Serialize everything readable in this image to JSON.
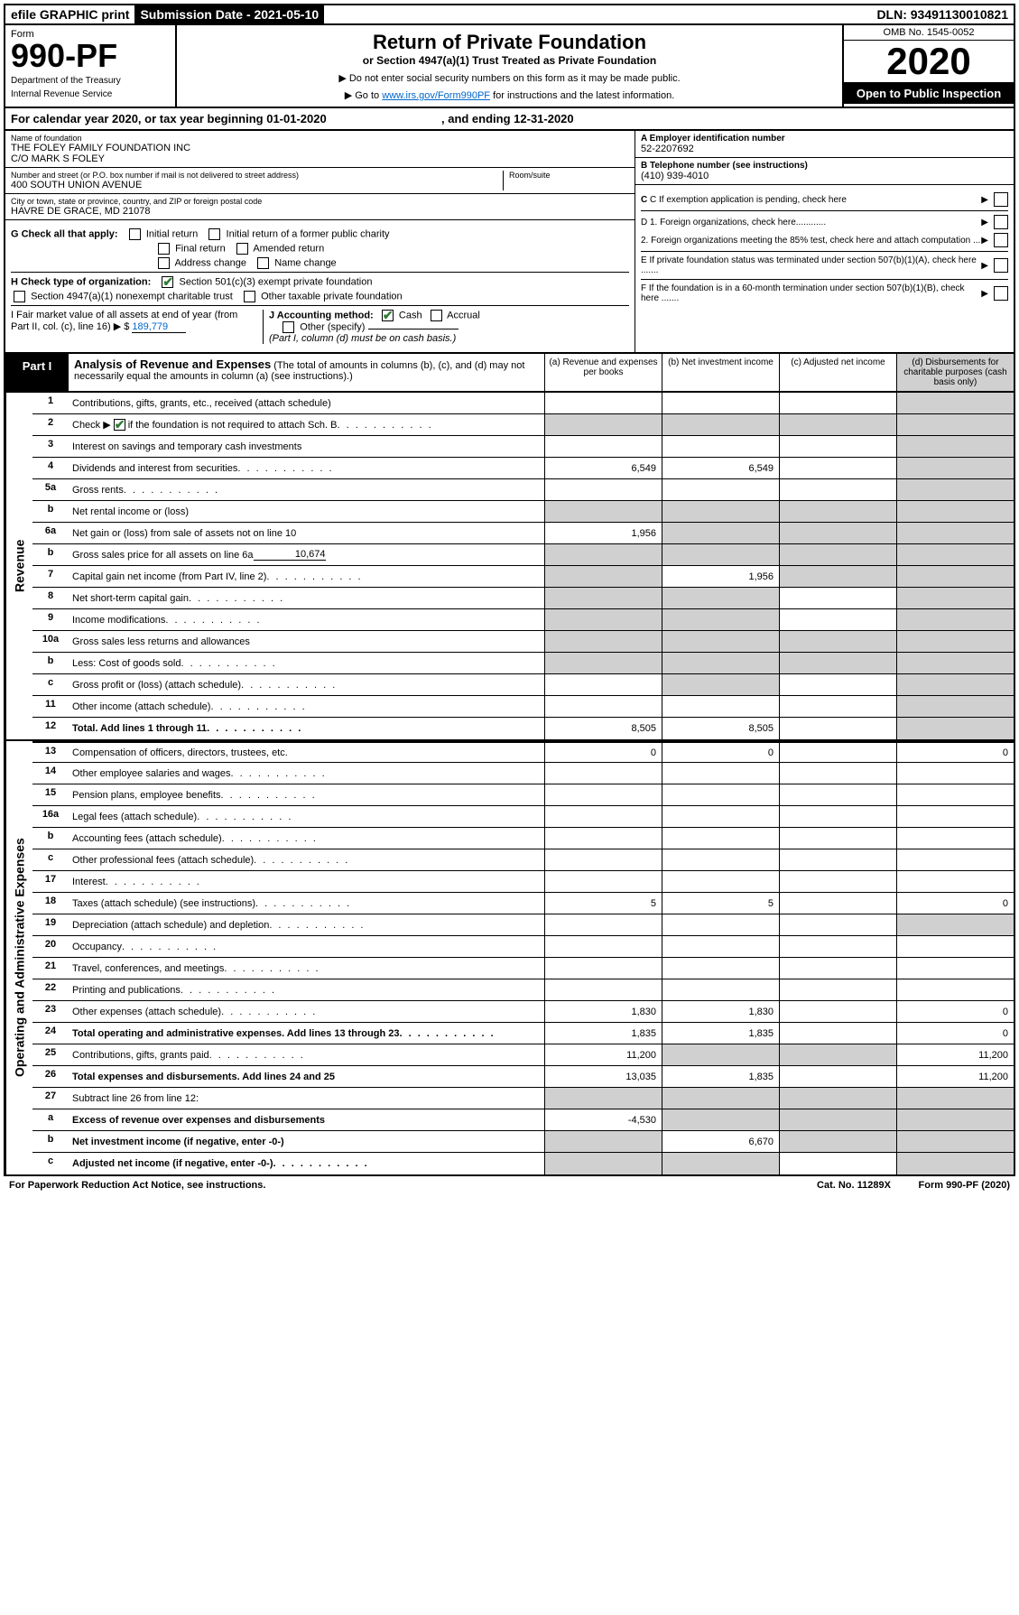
{
  "topbar": {
    "efile": "efile GRAPHIC print",
    "submission_label": "Submission Date - 2021-05-10",
    "dln": "DLN: 93491130010821"
  },
  "header": {
    "form_label": "Form",
    "form_number": "990-PF",
    "dept": "Department of the Treasury",
    "irs": "Internal Revenue Service",
    "title": "Return of Private Foundation",
    "subtitle": "or Section 4947(a)(1) Trust Treated as Private Foundation",
    "note1": "▶ Do not enter social security numbers on this form as it may be made public.",
    "note2_prefix": "▶ Go to ",
    "note2_link": "www.irs.gov/Form990PF",
    "note2_suffix": " for instructions and the latest information.",
    "omb": "OMB No. 1545-0052",
    "year": "2020",
    "open": "Open to Public Inspection"
  },
  "calyear": {
    "text_a": "For calendar year 2020, or tax year beginning 01-01-2020",
    "text_b": ", and ending 12-31-2020"
  },
  "identity": {
    "name_label": "Name of foundation",
    "name": "THE FOLEY FAMILY FOUNDATION INC",
    "care_of": "C/O MARK S FOLEY",
    "addr_label": "Number and street (or P.O. box number if mail is not delivered to street address)",
    "addr": "400 SOUTH UNION AVENUE",
    "room_label": "Room/suite",
    "city_label": "City or town, state or province, country, and ZIP or foreign postal code",
    "city": "HAVRE DE GRACE, MD  21078",
    "ein_label": "A Employer identification number",
    "ein": "52-2207692",
    "phone_label": "B Telephone number (see instructions)",
    "phone": "(410) 939-4010",
    "c_label": "C If exemption application is pending, check here",
    "d1": "D 1. Foreign organizations, check here............",
    "d2": "2. Foreign organizations meeting the 85% test, check here and attach computation ...",
    "e_label": "E  If private foundation status was terminated under section 507(b)(1)(A), check here .......",
    "f_label": "F  If the foundation is in a 60-month termination under section 507(b)(1)(B), check here ......."
  },
  "g": {
    "label": "G Check all that apply:",
    "initial": "Initial return",
    "initial_former": "Initial return of a former public charity",
    "final": "Final return",
    "amended": "Amended return",
    "addr_change": "Address change",
    "name_change": "Name change"
  },
  "h": {
    "label": "H Check type of organization:",
    "s501": "Section 501(c)(3) exempt private foundation",
    "s4947": "Section 4947(a)(1) nonexempt charitable trust",
    "other": "Other taxable private foundation"
  },
  "i": {
    "label": "I Fair market value of all assets at end of year (from Part II, col. (c), line 16) ▶ $",
    "value": "189,779"
  },
  "j": {
    "label": "J Accounting method:",
    "cash": "Cash",
    "accrual": "Accrual",
    "other": "Other (specify)",
    "note": "(Part I, column (d) must be on cash basis.)"
  },
  "part1": {
    "label": "Part I",
    "title": "Analysis of Revenue and Expenses",
    "subtitle": "(The total of amounts in columns (b), (c), and (d) may not necessarily equal the amounts in column (a) (see instructions).)",
    "col_a": "(a)   Revenue and expenses per books",
    "col_b": "(b)  Net investment income",
    "col_c": "(c)  Adjusted net income",
    "col_d": "(d)  Disbursements for charitable purposes (cash basis only)"
  },
  "sections": {
    "revenue": "Revenue",
    "expenses": "Operating and Administrative Expenses"
  },
  "rows": {
    "r1": {
      "num": "1",
      "desc": "Contributions, gifts, grants, etc., received (attach schedule)"
    },
    "r2": {
      "num": "2",
      "desc": "Check ▶",
      "desc2": " if the foundation is not required to attach Sch. B"
    },
    "r3": {
      "num": "3",
      "desc": "Interest on savings and temporary cash investments"
    },
    "r4": {
      "num": "4",
      "desc": "Dividends and interest from securities",
      "a": "6,549",
      "b": "6,549"
    },
    "r5a": {
      "num": "5a",
      "desc": "Gross rents"
    },
    "r5b": {
      "num": "b",
      "desc": "Net rental income or (loss)"
    },
    "r6a": {
      "num": "6a",
      "desc": "Net gain or (loss) from sale of assets not on line 10",
      "a": "1,956"
    },
    "r6b": {
      "num": "b",
      "desc": "Gross sales price for all assets on line 6a",
      "val": "10,674"
    },
    "r7": {
      "num": "7",
      "desc": "Capital gain net income (from Part IV, line 2)",
      "b": "1,956"
    },
    "r8": {
      "num": "8",
      "desc": "Net short-term capital gain"
    },
    "r9": {
      "num": "9",
      "desc": "Income modifications"
    },
    "r10a": {
      "num": "10a",
      "desc": "Gross sales less returns and allowances"
    },
    "r10b": {
      "num": "b",
      "desc": "Less: Cost of goods sold"
    },
    "r10c": {
      "num": "c",
      "desc": "Gross profit or (loss) (attach schedule)"
    },
    "r11": {
      "num": "11",
      "desc": "Other income (attach schedule)"
    },
    "r12": {
      "num": "12",
      "desc": "Total. Add lines 1 through 11",
      "a": "8,505",
      "b": "8,505"
    },
    "r13": {
      "num": "13",
      "desc": "Compensation of officers, directors, trustees, etc.",
      "a": "0",
      "b": "0",
      "d": "0"
    },
    "r14": {
      "num": "14",
      "desc": "Other employee salaries and wages"
    },
    "r15": {
      "num": "15",
      "desc": "Pension plans, employee benefits"
    },
    "r16a": {
      "num": "16a",
      "desc": "Legal fees (attach schedule)"
    },
    "r16b": {
      "num": "b",
      "desc": "Accounting fees (attach schedule)"
    },
    "r16c": {
      "num": "c",
      "desc": "Other professional fees (attach schedule)"
    },
    "r17": {
      "num": "17",
      "desc": "Interest"
    },
    "r18": {
      "num": "18",
      "desc": "Taxes (attach schedule) (see instructions)",
      "a": "5",
      "b": "5",
      "d": "0"
    },
    "r19": {
      "num": "19",
      "desc": "Depreciation (attach schedule) and depletion"
    },
    "r20": {
      "num": "20",
      "desc": "Occupancy"
    },
    "r21": {
      "num": "21",
      "desc": "Travel, conferences, and meetings"
    },
    "r22": {
      "num": "22",
      "desc": "Printing and publications"
    },
    "r23": {
      "num": "23",
      "desc": "Other expenses (attach schedule)",
      "a": "1,830",
      "b": "1,830",
      "d": "0"
    },
    "r24": {
      "num": "24",
      "desc": "Total operating and administrative expenses. Add lines 13 through 23",
      "a": "1,835",
      "b": "1,835",
      "d": "0"
    },
    "r25": {
      "num": "25",
      "desc": "Contributions, gifts, grants paid",
      "a": "11,200",
      "d": "11,200"
    },
    "r26": {
      "num": "26",
      "desc": "Total expenses and disbursements. Add lines 24 and 25",
      "a": "13,035",
      "b": "1,835",
      "d": "11,200"
    },
    "r27": {
      "num": "27",
      "desc": "Subtract line 26 from line 12:"
    },
    "r27a": {
      "num": "a",
      "desc": "Excess of revenue over expenses and disbursements",
      "a": "-4,530"
    },
    "r27b": {
      "num": "b",
      "desc": "Net investment income (if negative, enter -0-)",
      "b": "6,670"
    },
    "r27c": {
      "num": "c",
      "desc": "Adjusted net income (if negative, enter -0-)"
    }
  },
  "footer": {
    "left": "For Paperwork Reduction Act Notice, see instructions.",
    "mid": "Cat. No. 11289X",
    "right": "Form 990-PF (2020)"
  }
}
